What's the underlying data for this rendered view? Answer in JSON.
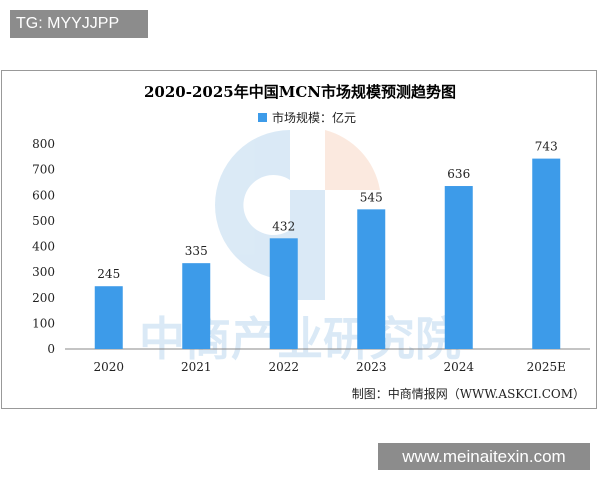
{
  "overlay": {
    "top_left_tag": "TG: MYYJJPP",
    "bottom_right_tag": "www.meinaitexin.com"
  },
  "watermark": "中商产业研究院",
  "chart_data": {
    "type": "bar",
    "title": "2020-2025年中国MCN市场规模预测趋势图",
    "categories": [
      "2020",
      "2021",
      "2022",
      "2023",
      "2024",
      "2025E"
    ],
    "series": [
      {
        "name": "市场规模：亿元",
        "values": [
          245,
          335,
          432,
          545,
          636,
          743
        ],
        "color": "#3d9be9"
      }
    ],
    "yticks": [
      0,
      100,
      200,
      300,
      400,
      500,
      600,
      700,
      800
    ],
    "ylim": [
      0,
      800
    ],
    "grid": false,
    "legend": "top-center",
    "data_labels": true,
    "source": "制图：中商情报网（WWW.ASKCI.COM）"
  }
}
